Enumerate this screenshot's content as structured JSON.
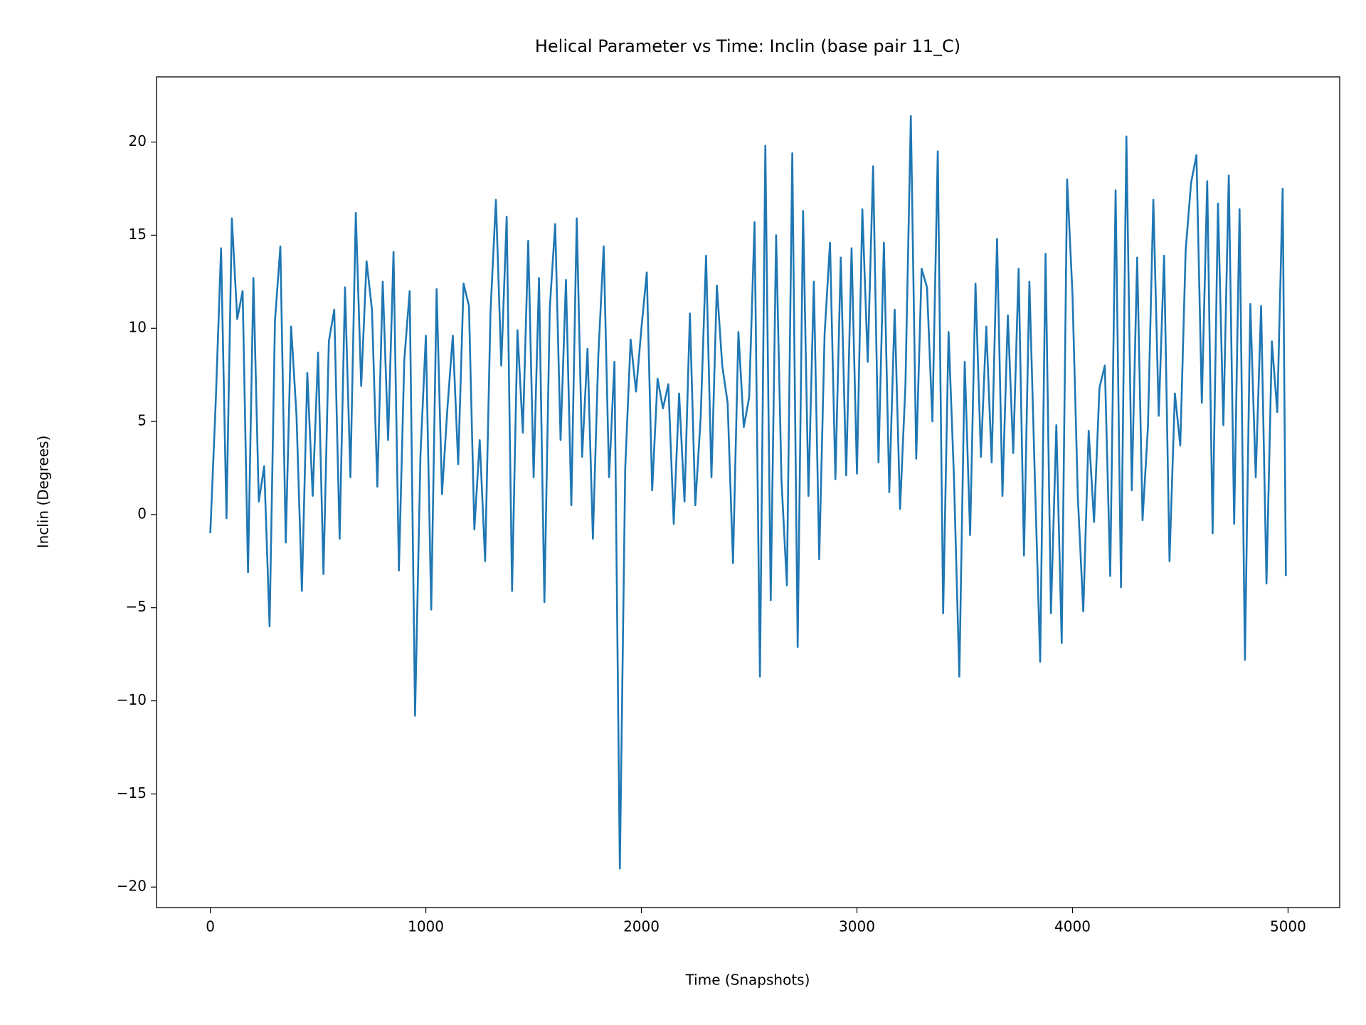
{
  "chart_data": {
    "type": "line",
    "title": "Helical Parameter vs Time: Inclin (base pair  11_C)",
    "x_label": "Time (Snapshots)",
    "y_label": "Inclin (Degrees)",
    "xlim": [
      -249.5,
      5239.5
    ],
    "ylim": [
      -21.1,
      23.5
    ],
    "xticks": [
      0,
      1000,
      2000,
      3000,
      4000,
      5000
    ],
    "yticks": [
      {
        "value": -20,
        "label": "−20"
      },
      {
        "value": -15,
        "label": "−15"
      },
      {
        "value": -10,
        "label": "−10"
      },
      {
        "value": -5,
        "label": "−5"
      },
      0,
      5,
      10,
      15,
      20
    ],
    "x": [
      0,
      25,
      50,
      75,
      100,
      125,
      150,
      175,
      200,
      225,
      250,
      275,
      300,
      325,
      350,
      375,
      400,
      425,
      450,
      475,
      500,
      525,
      550,
      575,
      600,
      625,
      650,
      675,
      700,
      725,
      750,
      775,
      800,
      825,
      850,
      875,
      900,
      925,
      950,
      975,
      1000,
      1025,
      1050,
      1075,
      1100,
      1125,
      1150,
      1175,
      1200,
      1225,
      1250,
      1275,
      1300,
      1325,
      1350,
      1375,
      1400,
      1425,
      1450,
      1475,
      1500,
      1525,
      1550,
      1575,
      1600,
      1625,
      1650,
      1675,
      1700,
      1725,
      1750,
      1775,
      1800,
      1825,
      1850,
      1875,
      1900,
      1925,
      1950,
      1975,
      2000,
      2025,
      2050,
      2075,
      2100,
      2125,
      2150,
      2175,
      2200,
      2225,
      2250,
      2275,
      2300,
      2325,
      2350,
      2375,
      2400,
      2425,
      2450,
      2475,
      2500,
      2525,
      2550,
      2575,
      2600,
      2625,
      2650,
      2675,
      2700,
      2725,
      2750,
      2775,
      2800,
      2825,
      2850,
      2875,
      2900,
      2925,
      2950,
      2975,
      3000,
      3025,
      3050,
      3075,
      3100,
      3125,
      3150,
      3175,
      3200,
      3225,
      3250,
      3275,
      3300,
      3325,
      3350,
      3375,
      3400,
      3425,
      3450,
      3475,
      3500,
      3525,
      3550,
      3575,
      3600,
      3625,
      3650,
      3675,
      3700,
      3725,
      3750,
      3775,
      3800,
      3825,
      3850,
      3875,
      3900,
      3925,
      3950,
      3975,
      4000,
      4025,
      4050,
      4075,
      4100,
      4125,
      4150,
      4175,
      4200,
      4225,
      4250,
      4275,
      4300,
      4325,
      4350,
      4375,
      4400,
      4425,
      4450,
      4475,
      4500,
      4525,
      4550,
      4575,
      4600,
      4625,
      4650,
      4675,
      4700,
      4725,
      4750,
      4775,
      4800,
      4825,
      4850,
      4875,
      4900,
      4925,
      4950,
      4975,
      4990
    ],
    "series": [
      {
        "color": "#1f77b4",
        "values": [
          -1,
          6,
          14.3,
          -0.2,
          15.9,
          10.5,
          12,
          -3.1,
          12.7,
          0.7,
          2.6,
          -6,
          10.4,
          14.4,
          -1.5,
          10.1,
          5.3,
          -4.1,
          7.6,
          1,
          8.7,
          -3.2,
          9.3,
          11,
          -1.3,
          12.2,
          2,
          16.2,
          6.9,
          13.6,
          11,
          1.5,
          12.5,
          4,
          14.1,
          -3,
          8.3,
          12,
          -10.8,
          3.2,
          9.6,
          -5.1,
          12.1,
          1.1,
          5.7,
          9.6,
          2.7,
          12.4,
          11.2,
          -0.8,
          4,
          -2.5,
          10.9,
          16.9,
          8,
          16,
          -4.1,
          9.9,
          4.4,
          14.7,
          2,
          12.7,
          -4.7,
          11.1,
          15.6,
          4,
          12.6,
          0.5,
          15.9,
          3.1,
          8.9,
          -1.3,
          8.5,
          14.4,
          2,
          8.2,
          -19,
          2.5,
          9.4,
          6.6,
          10,
          13,
          1.3,
          7.3,
          5.7,
          7,
          -0.5,
          6.5,
          0.7,
          10.8,
          0.5,
          5.2,
          13.9,
          2,
          12.3,
          8,
          6,
          -2.6,
          9.8,
          4.7,
          6.3,
          15.7,
          -8.7,
          19.8,
          -4.6,
          15,
          1.8,
          -3.8,
          19.4,
          -7.1,
          16.3,
          1,
          12.5,
          -2.4,
          9.7,
          14.6,
          1.9,
          13.8,
          2.1,
          14.3,
          2.2,
          16.4,
          8.2,
          18.7,
          2.8,
          14.6,
          1.2,
          11,
          0.3,
          7,
          21.4,
          3,
          13.2,
          12.2,
          5,
          19.5,
          -5.3,
          9.8,
          2,
          -8.7,
          8.2,
          -1.1,
          12.4,
          3.1,
          10.1,
          2.8,
          14.8,
          1,
          10.7,
          3.3,
          13.2,
          -2.2,
          12.5,
          2.1,
          -7.9,
          14,
          -5.3,
          4.8,
          -6.9,
          18,
          11.8,
          0.9,
          -5.2,
          4.5,
          -0.4,
          6.8,
          8,
          -3.3,
          17.4,
          -3.9,
          20.3,
          1.3,
          13.8,
          -0.3,
          4.7,
          16.9,
          5.3,
          13.9,
          -2.5,
          6.5,
          3.7,
          14.2,
          17.8,
          19.3,
          6,
          17.9,
          -1,
          16.7,
          4.8,
          18.2,
          -0.5,
          16.4,
          -7.8,
          11.3,
          2,
          11.2,
          -3.7,
          9.3,
          5.5,
          17.5,
          -3.3
        ]
      }
    ]
  }
}
